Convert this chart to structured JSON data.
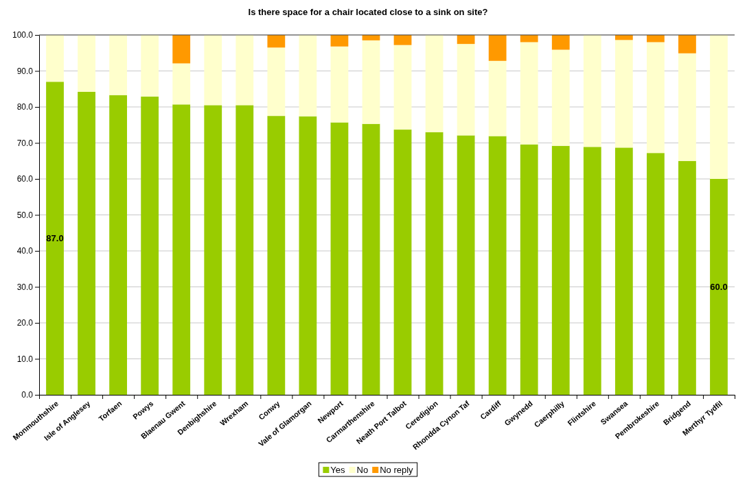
{
  "chart_data": {
    "type": "bar",
    "title": "Is there space for a chair located close to a sink on site?",
    "categories": [
      "Monmouthshire",
      "Isle of Anglesey",
      "Torfaen",
      "Powys",
      "Blaenau Gwent",
      "Denbighshire",
      "Wrexham",
      "Conwy",
      "Vale of Glamorgan",
      "Newport",
      "Carmarthenshire",
      "Neath Port Talbot",
      "Ceredigion",
      "Rhondda Cynon Taf",
      "Cardiff",
      "Gwynedd",
      "Caerphilly",
      "Flintshire",
      "Swansea",
      "Pembrokeshire",
      "Bridgend",
      "Merthyr Tydfil"
    ],
    "series": [
      {
        "name": "Yes",
        "color": "#99cc00",
        "values": [
          87.0,
          84.2,
          83.3,
          82.9,
          80.7,
          80.5,
          80.5,
          77.5,
          77.4,
          75.7,
          75.3,
          73.7,
          73.0,
          72.1,
          71.9,
          69.6,
          69.2,
          68.9,
          68.7,
          67.2,
          65.0,
          60.0
        ],
        "value_labels": [
          "87.0",
          null,
          null,
          null,
          null,
          null,
          null,
          null,
          null,
          null,
          null,
          null,
          null,
          null,
          null,
          null,
          null,
          null,
          null,
          null,
          null,
          "60.0"
        ]
      },
      {
        "name": "No",
        "color": "#ffffcc",
        "values": [
          13.0,
          15.8,
          16.7,
          17.1,
          11.4,
          19.5,
          19.5,
          19.0,
          22.6,
          21.1,
          23.2,
          23.5,
          27.0,
          25.4,
          20.9,
          28.4,
          26.7,
          31.1,
          29.9,
          30.8,
          29.9,
          40.0
        ]
      },
      {
        "name": "No reply",
        "color": "#ff9900",
        "values": [
          0,
          0,
          0,
          0,
          7.9,
          0,
          0,
          3.5,
          0,
          3.2,
          1.5,
          2.8,
          0,
          2.5,
          7.2,
          2.0,
          4.1,
          0,
          1.4,
          2.0,
          5.1,
          0
        ]
      }
    ],
    "stacked": true,
    "ylim": [
      0,
      100
    ],
    "yticks": [
      {
        "value": 0,
        "label": "0.0"
      },
      {
        "value": 10,
        "label": "10.0"
      },
      {
        "value": 20,
        "label": "20.0"
      },
      {
        "value": 30,
        "label": "30.0"
      },
      {
        "value": 40,
        "label": "40.0"
      },
      {
        "value": 50,
        "label": "50.0"
      },
      {
        "value": 60,
        "label": "60.0"
      },
      {
        "value": 70,
        "label": "70.0"
      },
      {
        "value": 80,
        "label": "80.0"
      },
      {
        "value": 90,
        "label": "90.0"
      },
      {
        "value": 100,
        "label": "100.0"
      }
    ],
    "grid": "y",
    "legend": "bottom"
  }
}
